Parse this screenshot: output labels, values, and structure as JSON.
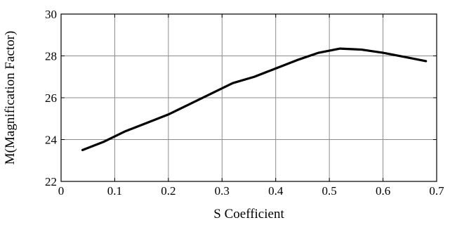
{
  "chart_data": {
    "type": "line",
    "title": "",
    "xlabel": "S Coefficient",
    "ylabel": "M(Magnification Factor)",
    "xlim": [
      0,
      0.7
    ],
    "ylim": [
      22,
      30
    ],
    "xticks": [
      0,
      0.1,
      0.2,
      0.3,
      0.4,
      0.5,
      0.6,
      0.7
    ],
    "yticks": [
      22,
      24,
      26,
      28,
      30
    ],
    "xtick_labels": [
      "0",
      "0.1",
      "0.2",
      "0.3",
      "0.4",
      "0.5",
      "0.6",
      "0.7"
    ],
    "ytick_labels": [
      "22",
      "24",
      "26",
      "28",
      "30"
    ],
    "grid": true,
    "legend": "none",
    "series": [
      {
        "color": "#000000",
        "x": [
          0.04,
          0.08,
          0.12,
          0.16,
          0.2,
          0.24,
          0.28,
          0.32,
          0.36,
          0.4,
          0.44,
          0.48,
          0.52,
          0.56,
          0.6,
          0.64,
          0.68
        ],
        "y": [
          23.5,
          23.9,
          24.4,
          24.8,
          25.2,
          25.7,
          26.2,
          26.7,
          27.0,
          27.4,
          27.8,
          28.15,
          28.35,
          28.3,
          28.15,
          27.95,
          27.75
        ]
      }
    ]
  }
}
